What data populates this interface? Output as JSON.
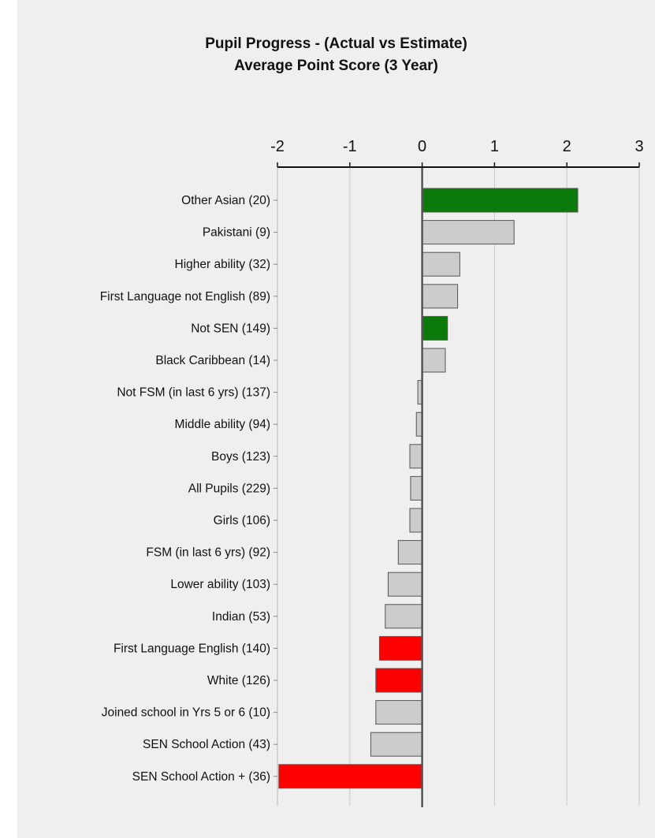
{
  "chart_data": {
    "type": "bar",
    "orientation": "horizontal",
    "title": "Pupil Progress - (Actual vs Estimate)",
    "subtitle": "Average Point Score (3 Year)",
    "xlim": [
      -2,
      3
    ],
    "x_ticks": [
      "-2",
      "-1",
      "0",
      "1",
      "2",
      "3"
    ],
    "x_axis_position": "top",
    "grid": true,
    "colors": {
      "positive_sig": "#0b7a0b",
      "negative_sig": "#ff0000",
      "neutral": "#cccccc",
      "panel": "#efefef"
    },
    "bars": [
      {
        "label": "Other Asian (20)",
        "value": 2.15,
        "status": "positive_sig"
      },
      {
        "label": "Pakistani (9)",
        "value": 1.27,
        "status": "neutral"
      },
      {
        "label": "Higher ability (32)",
        "value": 0.52,
        "status": "neutral"
      },
      {
        "label": "First Language not English (89)",
        "value": 0.49,
        "status": "neutral"
      },
      {
        "label": "Not SEN (149)",
        "value": 0.35,
        "status": "positive_sig"
      },
      {
        "label": "Black Caribbean (14)",
        "value": 0.32,
        "status": "neutral"
      },
      {
        "label": "Not FSM (in last 6 yrs) (137)",
        "value": -0.06,
        "status": "neutral"
      },
      {
        "label": "Middle ability (94)",
        "value": -0.08,
        "status": "neutral"
      },
      {
        "label": "Boys (123)",
        "value": -0.17,
        "status": "neutral"
      },
      {
        "label": "All Pupils (229)",
        "value": -0.16,
        "status": "neutral"
      },
      {
        "label": "Girls (106)",
        "value": -0.17,
        "status": "neutral"
      },
      {
        "label": "FSM (in last 6 yrs) (92)",
        "value": -0.33,
        "status": "neutral"
      },
      {
        "label": "Lower ability (103)",
        "value": -0.47,
        "status": "neutral"
      },
      {
        "label": "Indian (53)",
        "value": -0.51,
        "status": "neutral"
      },
      {
        "label": "First Language English (140)",
        "value": -0.59,
        "status": "negative_sig"
      },
      {
        "label": "White (126)",
        "value": -0.64,
        "status": "negative_sig"
      },
      {
        "label": "Joined school in Yrs 5 or 6 (10)",
        "value": -0.64,
        "status": "neutral"
      },
      {
        "label": "SEN School Action (43)",
        "value": -0.71,
        "status": "neutral"
      },
      {
        "label": "SEN School Action + (36)",
        "value": -1.98,
        "status": "negative_sig"
      }
    ]
  }
}
